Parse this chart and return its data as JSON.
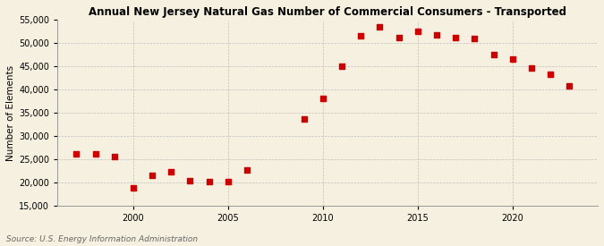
{
  "title": "Annual New Jersey Natural Gas Number of Commercial Consumers - Transported",
  "ylabel": "Number of Elements",
  "source": "Source: U.S. Energy Information Administration",
  "background_color": "#f5f0e0",
  "plot_bg_color": "#f5f0e0",
  "years": [
    1997,
    1998,
    1999,
    2000,
    2001,
    2002,
    2003,
    2004,
    2005,
    2006,
    2009,
    2010,
    2011,
    2012,
    2013,
    2014,
    2015,
    2016,
    2017,
    2018,
    2019,
    2020,
    2021,
    2022,
    2023
  ],
  "values": [
    26200,
    26200,
    25500,
    18800,
    21600,
    22200,
    20400,
    20200,
    20100,
    22600,
    33600,
    38100,
    45100,
    51600,
    53600,
    51200,
    52600,
    51800,
    51200,
    51100,
    47600,
    46600,
    44600,
    43300,
    40800
  ],
  "marker_color": "#cc0000",
  "marker_size": 4,
  "ylim": [
    15000,
    55000
  ],
  "yticks": [
    15000,
    20000,
    25000,
    30000,
    35000,
    40000,
    45000,
    50000,
    55000
  ],
  "xticks": [
    2000,
    2005,
    2010,
    2015,
    2020
  ],
  "grid_color": "#bbbbbb",
  "title_fontsize": 8.5,
  "axis_fontsize": 7.5,
  "tick_fontsize": 7,
  "source_fontsize": 6.5
}
